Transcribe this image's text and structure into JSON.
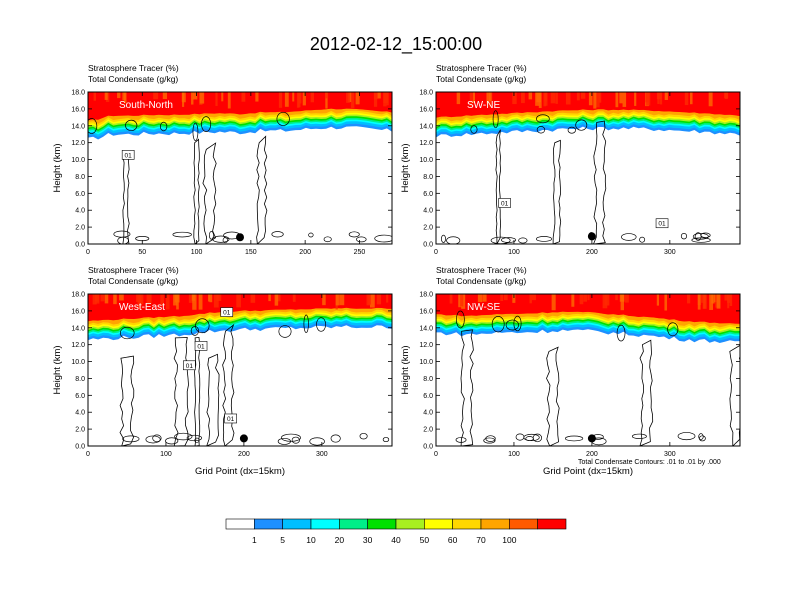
{
  "figure_title": "2012-02-12_15:00:00",
  "footnote": "Total Condensate Contours: .01 to .01 by .000",
  "colorbar": {
    "labels": [
      "1",
      "5",
      "10",
      "20",
      "30",
      "40",
      "50",
      "60",
      "70",
      "100"
    ],
    "colors": [
      "#ffffff",
      "#1e90ff",
      "#00bfff",
      "#00ffff",
      "#00ee88",
      "#00e000",
      "#a8f020",
      "#ffff00",
      "#ffd700",
      "#ffa500",
      "#ff5a00",
      "#ff0000"
    ]
  },
  "chart_data": [
    {
      "type": "heatmap",
      "title_line1": "Stratosphere Tracer   (%)",
      "title_line2": "Total Condensate   (g/kg)",
      "panel_label": "South-North",
      "ylabel": "Height (km)",
      "xlabel": "",
      "xlim": [
        0,
        280
      ],
      "ylim": [
        0,
        18
      ],
      "xticks": [
        0,
        50,
        100,
        150,
        200,
        250
      ],
      "yticks": [
        "0.0",
        "2.0",
        "4.0",
        "6.0",
        "8.0",
        "10.0",
        "12.0",
        "14.0",
        "16.0",
        "18.0"
      ],
      "marker": {
        "x": 140,
        "y": 0.8
      },
      "contour_labels": [
        {
          "text": "01",
          "x": 37,
          "y": 10.5
        }
      ],
      "tracer_top_profile": [
        [
          0,
          14.6
        ],
        [
          10,
          14.8
        ],
        [
          20,
          15.2
        ],
        [
          40,
          15.2
        ],
        [
          60,
          15.3
        ],
        [
          80,
          15.3
        ],
        [
          100,
          15.4
        ],
        [
          120,
          15.5
        ],
        [
          140,
          15.4
        ],
        [
          160,
          15.6
        ],
        [
          180,
          15.6
        ],
        [
          200,
          15.8
        ],
        [
          220,
          16.0
        ],
        [
          240,
          16.0
        ],
        [
          260,
          15.8
        ],
        [
          280,
          15.6
        ]
      ]
    },
    {
      "type": "heatmap",
      "title_line1": "Stratosphere Tracer   (%)",
      "title_line2": "Total Condensate   (g/kg)",
      "panel_label": "SW-NE",
      "ylabel": "Height (km)",
      "xlabel": "",
      "xlim": [
        0,
        390
      ],
      "ylim": [
        0,
        18
      ],
      "xticks": [
        0,
        100,
        200,
        300
      ],
      "yticks": [
        "0.0",
        "2.0",
        "4.0",
        "6.0",
        "8.0",
        "10.0",
        "12.0",
        "14.0",
        "16.0",
        "18.0"
      ],
      "marker": {
        "x": 200,
        "y": 0.9
      },
      "contour_labels": [
        {
          "text": "01",
          "x": 88,
          "y": 4.8
        },
        {
          "text": "01",
          "x": 290,
          "y": 2.4
        }
      ],
      "tracer_top_profile": [
        [
          0,
          15.0
        ],
        [
          40,
          15.2
        ],
        [
          80,
          15.4
        ],
        [
          120,
          15.6
        ],
        [
          160,
          15.8
        ],
        [
          200,
          15.9
        ],
        [
          240,
          15.9
        ],
        [
          280,
          15.8
        ],
        [
          320,
          15.6
        ],
        [
          360,
          15.4
        ],
        [
          390,
          15.2
        ]
      ]
    },
    {
      "type": "heatmap",
      "title_line1": "Stratosphere Tracer   (%)",
      "title_line2": "Total Condensate   (g/kg)",
      "panel_label": "West-East",
      "ylabel": "Height (km)",
      "xlabel": "Grid Point (dx=15km)",
      "xlim": [
        0,
        390
      ],
      "ylim": [
        0,
        18
      ],
      "xticks": [
        0,
        100,
        200,
        300
      ],
      "yticks": [
        "0.0",
        "2.0",
        "4.0",
        "6.0",
        "8.0",
        "10.0",
        "12.0",
        "14.0",
        "16.0",
        "18.0"
      ],
      "marker": {
        "x": 200,
        "y": 0.9
      },
      "contour_labels": [
        {
          "text": "01",
          "x": 178,
          "y": 15.8
        },
        {
          "text": "01",
          "x": 145,
          "y": 11.8
        },
        {
          "text": "01",
          "x": 130,
          "y": 9.5
        },
        {
          "text": "01",
          "x": 183,
          "y": 3.2
        }
      ],
      "tracer_top_profile": [
        [
          0,
          14.8
        ],
        [
          40,
          15.0
        ],
        [
          80,
          15.2
        ],
        [
          120,
          15.4
        ],
        [
          160,
          15.8
        ],
        [
          200,
          16.0
        ],
        [
          240,
          16.1
        ],
        [
          280,
          16.2
        ],
        [
          320,
          16.3
        ],
        [
          360,
          16.3
        ],
        [
          390,
          16.3
        ]
      ]
    },
    {
      "type": "heatmap",
      "title_line1": "Stratosphere Tracer   (%)",
      "title_line2": "Total Condensate   (g/kg)",
      "panel_label": "NW-SE",
      "ylabel": "Height (km)",
      "xlabel": "Grid Point (dx=15km)",
      "xlim": [
        0,
        390
      ],
      "ylim": [
        0,
        18
      ],
      "xticks": [
        0,
        100,
        200,
        300
      ],
      "yticks": [
        "0.0",
        "2.0",
        "4.0",
        "6.0",
        "8.0",
        "10.0",
        "12.0",
        "14.0",
        "16.0",
        "18.0"
      ],
      "marker": {
        "x": 200,
        "y": 0.9
      },
      "contour_labels": [],
      "tracer_top_profile": [
        [
          0,
          15.6
        ],
        [
          40,
          15.4
        ],
        [
          80,
          15.6
        ],
        [
          120,
          15.7
        ],
        [
          160,
          15.9
        ],
        [
          200,
          15.8
        ],
        [
          240,
          15.5
        ],
        [
          280,
          15.2
        ],
        [
          320,
          14.8
        ],
        [
          360,
          14.6
        ],
        [
          390,
          14.4
        ]
      ]
    }
  ]
}
